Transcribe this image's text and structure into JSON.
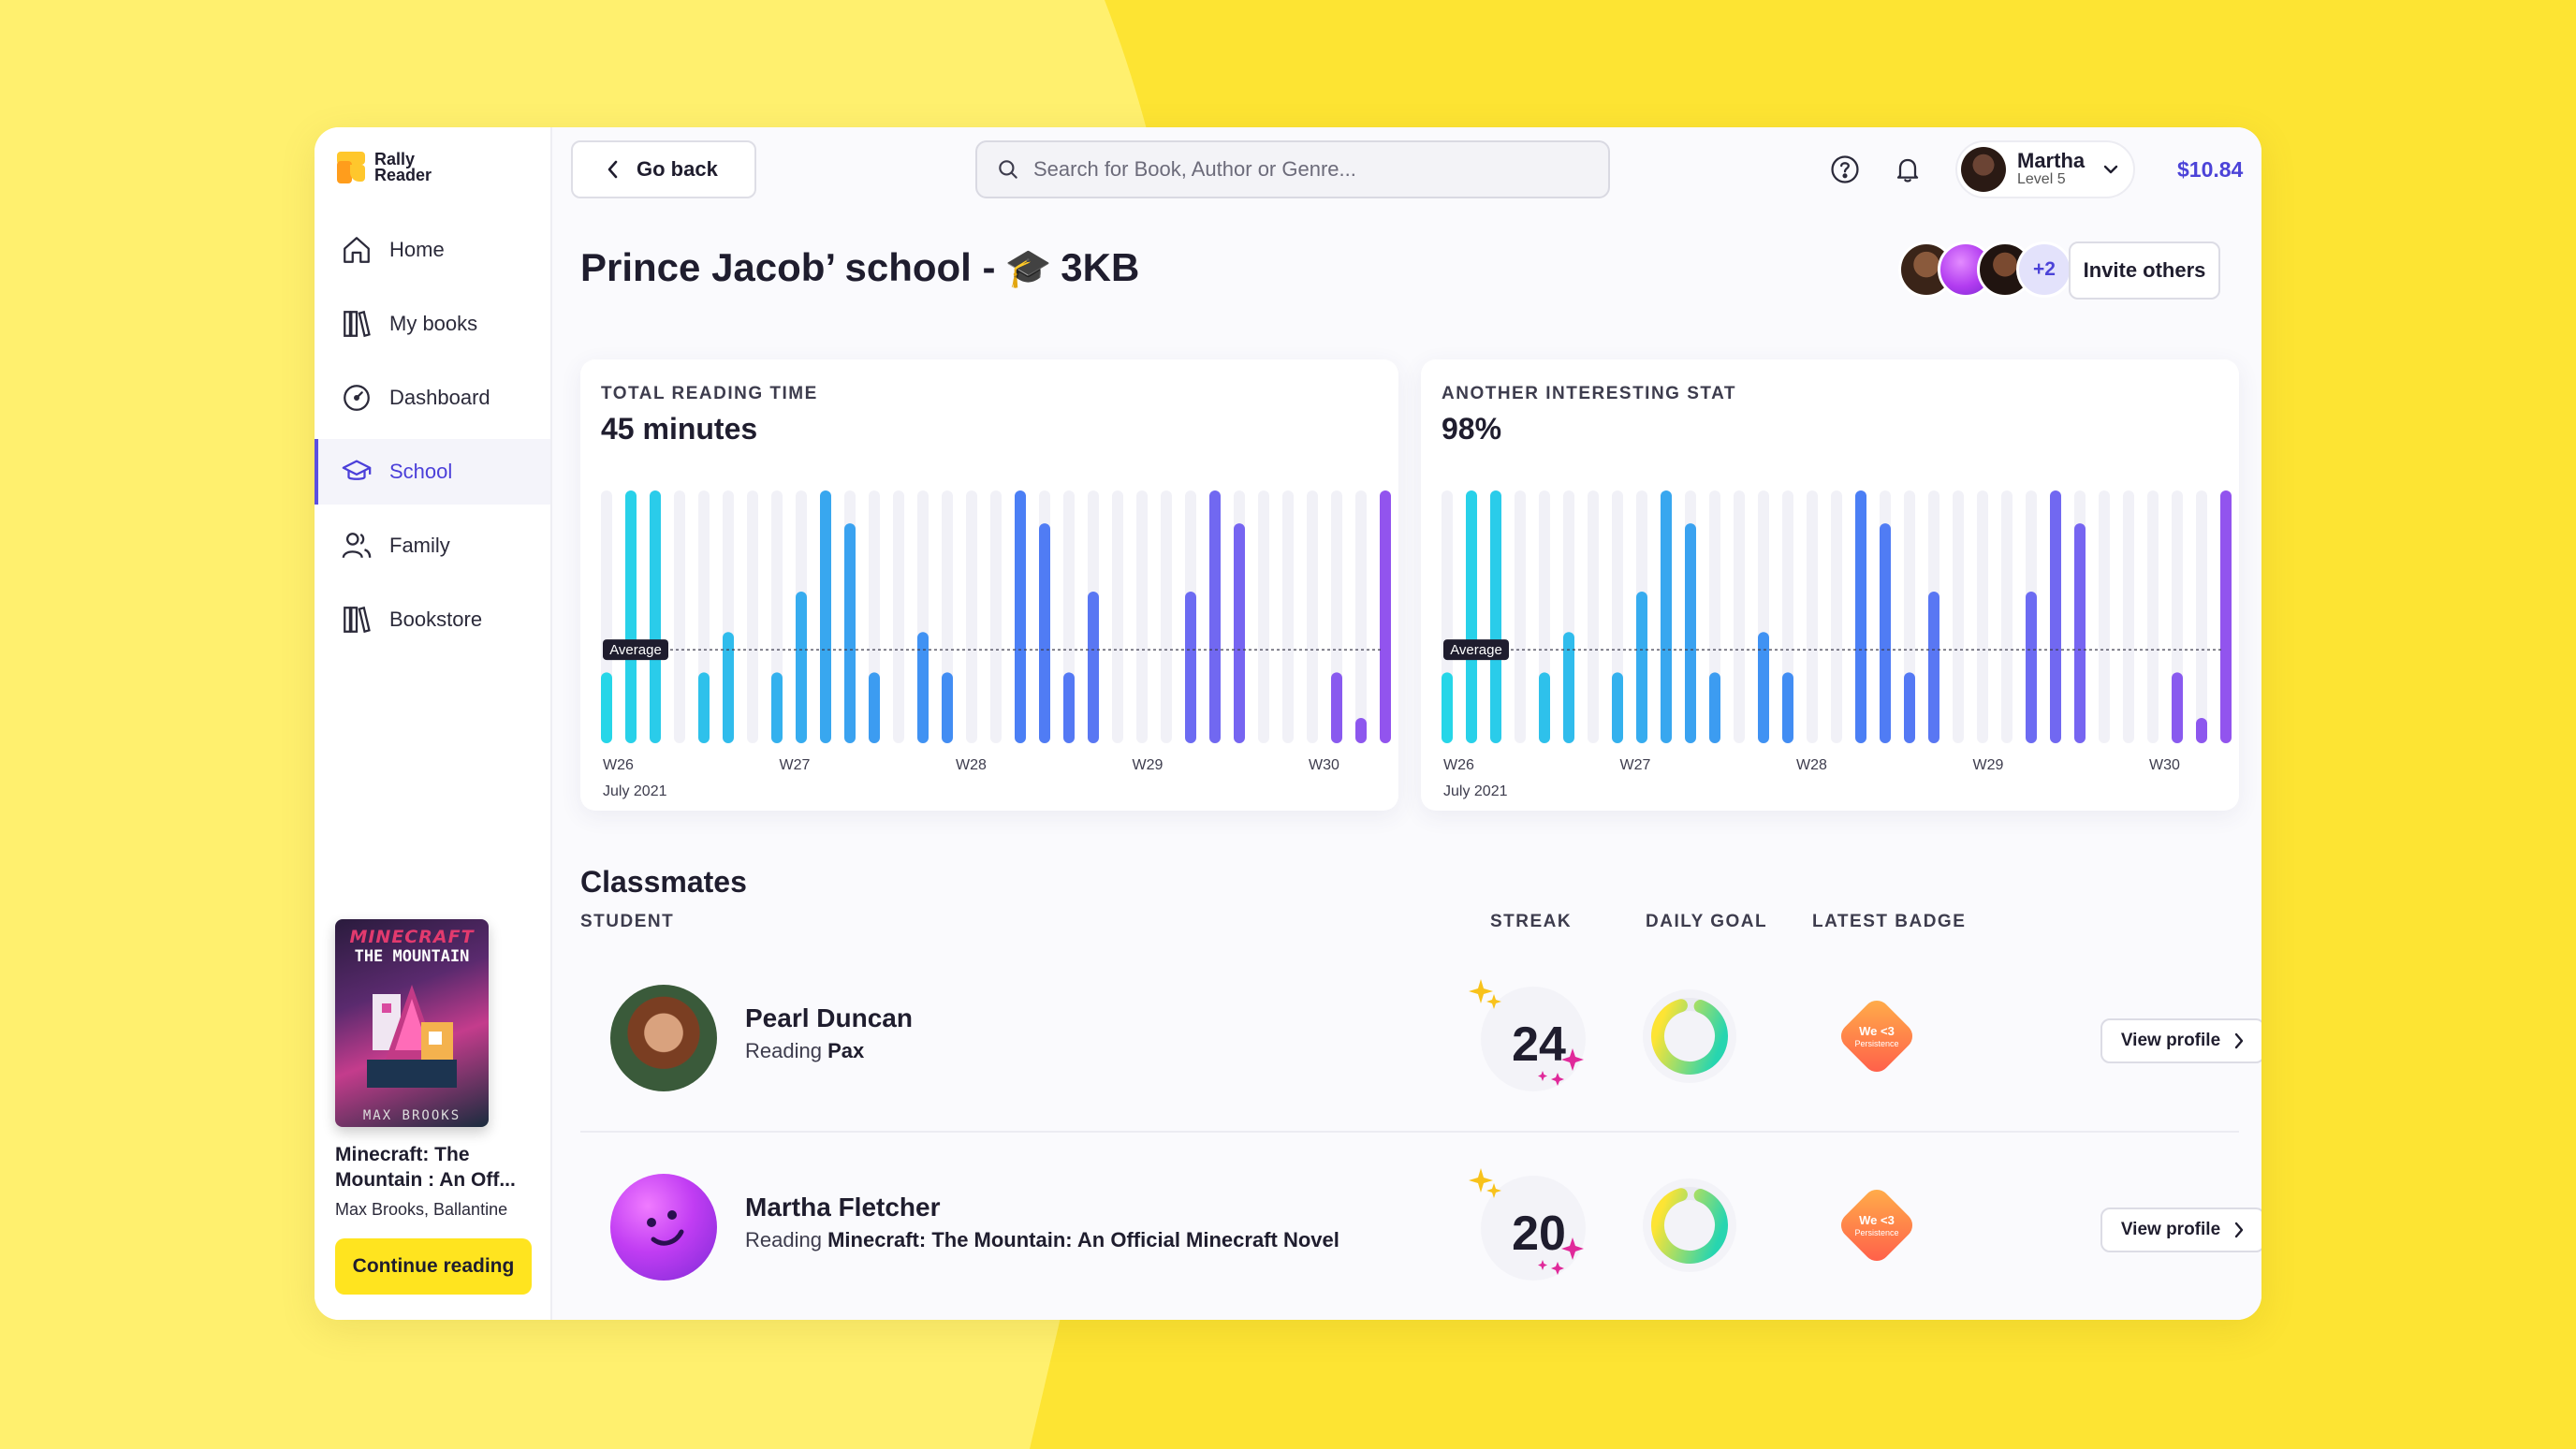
{
  "app": {
    "logo_line1": "Rally",
    "logo_line2": "Reader"
  },
  "sidebar": {
    "items": [
      {
        "label": "Home",
        "icon": "home-icon"
      },
      {
        "label": "My books",
        "icon": "books-icon"
      },
      {
        "label": "Dashboard",
        "icon": "dashboard-icon"
      },
      {
        "label": "School",
        "icon": "school-icon",
        "active": true
      },
      {
        "label": "Family",
        "icon": "family-icon"
      },
      {
        "label": "Bookstore",
        "icon": "bookstore-icon"
      }
    ],
    "book": {
      "cover_line1": "MINECRAFT",
      "cover_line2": "THE MOUNTAIN",
      "cover_author": "MAX BROOKS",
      "title": "Minecraft: The Mountain : An Off...",
      "author": "Max Brooks, Ballantine",
      "cta": "Continue reading"
    }
  },
  "topbar": {
    "back_label": "Go back",
    "search_placeholder": "Search for Book, Author or Genre...",
    "user_name": "Martha",
    "user_level": "Level 5",
    "balance": "$10.84"
  },
  "page": {
    "title": "Prince Jacob’ school -",
    "title_emoji": "🎓",
    "title_suffix": "3KB",
    "more_members": "+2",
    "invite_label": "Invite others"
  },
  "colors": {
    "accent": "#4c43d8",
    "cta": "#ffe41f",
    "background": "#fde433"
  },
  "chart_data": [
    {
      "type": "bar",
      "title": "TOTAL READING TIME",
      "headline_value": "45 minutes",
      "average_label": "Average",
      "x_tick_labels": [
        "W26",
        "W27",
        "W28",
        "W29",
        "W30"
      ],
      "x_sublabel": "July 2021",
      "values": [
        0.28,
        1.0,
        1.0,
        0,
        0.28,
        0.44,
        0,
        0.28,
        0.6,
        1.0,
        0.87,
        0.28,
        0,
        0.44,
        0.28,
        0,
        0,
        1.0,
        0.87,
        0.28,
        0.6,
        0,
        0,
        0,
        0.6,
        1.0,
        0.87,
        0,
        0,
        0,
        0.28,
        0.1,
        1.0
      ],
      "average": 0.37
    },
    {
      "type": "bar",
      "title": "ANOTHER INTERESTING STAT",
      "headline_value": "98%",
      "average_label": "Average",
      "x_tick_labels": [
        "W26",
        "W27",
        "W28",
        "W29",
        "W30"
      ],
      "x_sublabel": "July 2021",
      "values": [
        0.28,
        1.0,
        1.0,
        0,
        0.28,
        0.44,
        0,
        0.28,
        0.6,
        1.0,
        0.87,
        0.28,
        0,
        0.44,
        0.28,
        0,
        0,
        1.0,
        0.87,
        0.28,
        0.6,
        0,
        0,
        0,
        0.6,
        1.0,
        0.87,
        0,
        0,
        0,
        0.28,
        0.1,
        1.0
      ],
      "average": 0.37
    }
  ],
  "classmates": {
    "title": "Classmates",
    "columns": {
      "student": "STUDENT",
      "streak": "STREAK",
      "daily_goal": "DAILY GOAL",
      "latest_badge": "LATEST BADGE"
    },
    "rows": [
      {
        "name": "Pearl Duncan",
        "reading_prefix": "Reading",
        "book": "Pax",
        "streak": "24",
        "goal_fraction": 0.9,
        "badge_line1": "We <3",
        "badge_line2": "Persistence",
        "view_label": "View profile"
      },
      {
        "name": "Martha Fletcher",
        "reading_prefix": "Reading",
        "book": "Minecraft: The Mountain: An Official Minecraft Novel",
        "streak": "20",
        "goal_fraction": 0.9,
        "badge_line1": "We <3",
        "badge_line2": "Persistence",
        "view_label": "View profile"
      }
    ]
  }
}
